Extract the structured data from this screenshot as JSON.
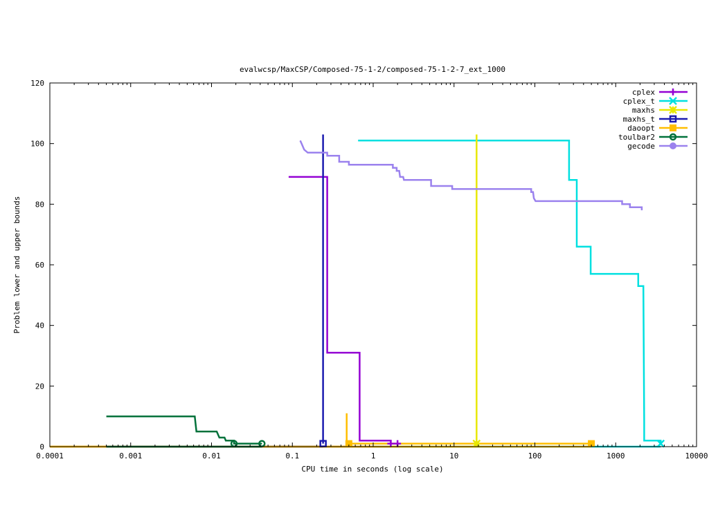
{
  "chart_data": {
    "type": "line",
    "title": "evalwcsp/MaxCSP/Composed-75-1-2/composed-75-1-2-7_ext_1000",
    "xlabel": "CPU time in seconds (log scale)",
    "ylabel": "Problem lower and upper bounds",
    "xscale": "log",
    "xlim": [
      0.0001,
      10000
    ],
    "ylim": [
      0,
      120
    ],
    "x_ticks": [
      0.0001,
      0.001,
      0.01,
      0.1,
      1,
      10,
      100,
      1000,
      10000
    ],
    "x_tick_labels": [
      "0.0001",
      "0.001",
      "0.01",
      "0.1",
      "1",
      "10",
      "100",
      "1000",
      "10000"
    ],
    "y_ticks": [
      0,
      20,
      40,
      60,
      80,
      100,
      120
    ],
    "y_tick_labels": [
      "0",
      "20",
      "40",
      "60",
      "80",
      "100",
      "120"
    ],
    "grid": false,
    "legend_position": "top-right",
    "series": [
      {
        "name": "cplex",
        "color": "#9400d3",
        "marker": "plus",
        "marker_points": [
          [
            1.65,
            1
          ],
          [
            2.0,
            1
          ]
        ],
        "lines": [
          [
            [
              0.09,
              89
            ],
            [
              0.27,
              89
            ],
            [
              0.27,
              31
            ],
            [
              0.68,
              31
            ],
            [
              0.68,
              2
            ],
            [
              1.65,
              2
            ],
            [
              1.65,
              1
            ]
          ],
          [
            [
              0.0001,
              0
            ],
            [
              1.65,
              0
            ]
          ]
        ]
      },
      {
        "name": "cplex_t",
        "color": "#00e0e0",
        "marker": "x",
        "marker_points": [
          [
            3600,
            1
          ]
        ],
        "lines": [
          [
            [
              0.65,
              101
            ],
            [
              265,
              101
            ],
            [
              265,
              88
            ],
            [
              330,
              88
            ],
            [
              330,
              66
            ],
            [
              490,
              66
            ],
            [
              490,
              57
            ],
            [
              1900,
              57
            ],
            [
              1900,
              53
            ],
            [
              2200,
              53
            ],
            [
              2250,
              8
            ],
            [
              2250,
              2
            ],
            [
              3600,
              2
            ],
            [
              3600,
              1
            ]
          ],
          [
            [
              1,
              0
            ],
            [
              3600,
              0
            ]
          ]
        ]
      },
      {
        "name": "maxhs",
        "color": "#e8e800",
        "marker": "star",
        "marker_points": [
          [
            19,
            1
          ]
        ],
        "lines": [
          [
            [
              19,
              103
            ],
            [
              19,
              1
            ]
          ],
          [
            [
              0.0001,
              0
            ],
            [
              19,
              0
            ]
          ]
        ]
      },
      {
        "name": "maxhs_t",
        "color": "#1a1aaf",
        "marker": "square-open",
        "marker_points": [
          [
            0.24,
            1
          ]
        ],
        "lines": [
          [
            [
              0.24,
              103
            ],
            [
              0.24,
              1
            ]
          ],
          [
            [
              0.0005,
              0
            ],
            [
              0.24,
              0
            ]
          ]
        ]
      },
      {
        "name": "daoopt",
        "color": "#ffbe00",
        "marker": "square-filled",
        "marker_points": [
          [
            0.5,
            1
          ],
          [
            500,
            1
          ]
        ],
        "lines": [
          [
            [
              0.47,
              11
            ],
            [
              0.47,
              1
            ],
            [
              500,
              1
            ]
          ],
          [
            [
              0.0001,
              0
            ],
            [
              500,
              0
            ]
          ]
        ]
      },
      {
        "name": "toulbar2",
        "color": "#00713a",
        "marker": "circle-open",
        "marker_points": [
          [
            0.019,
            1
          ],
          [
            0.042,
            1
          ]
        ],
        "lines": [
          [
            [
              0.0005,
              10
            ],
            [
              0.0062,
              10
            ],
            [
              0.0065,
              5
            ],
            [
              0.0116,
              5
            ],
            [
              0.0125,
              3
            ],
            [
              0.0145,
              3
            ],
            [
              0.015,
              2
            ],
            [
              0.019,
              2
            ],
            [
              0.019,
              1
            ],
            [
              0.042,
              1
            ]
          ],
          [
            [
              0.0005,
              0
            ],
            [
              0.042,
              0
            ]
          ]
        ]
      },
      {
        "name": "gecode",
        "color": "#9b82ee",
        "marker": "circle-filled",
        "marker_points": [],
        "lines": [
          [
            [
              0.125,
              101
            ],
            [
              0.13,
              100
            ],
            [
              0.14,
              98
            ],
            [
              0.155,
              97
            ],
            [
              0.27,
              97
            ],
            [
              0.27,
              96
            ],
            [
              0.38,
              96
            ],
            [
              0.38,
              94
            ],
            [
              0.5,
              94
            ],
            [
              0.5,
              93
            ],
            [
              1.75,
              93
            ],
            [
              1.75,
              92
            ],
            [
              1.95,
              92
            ],
            [
              1.95,
              91
            ],
            [
              2.1,
              91
            ],
            [
              2.15,
              89
            ],
            [
              2.35,
              89
            ],
            [
              2.4,
              88
            ],
            [
              5.2,
              88
            ],
            [
              5.2,
              86
            ],
            [
              9.5,
              86
            ],
            [
              9.5,
              85
            ],
            [
              90,
              85
            ],
            [
              90,
              84
            ],
            [
              95,
              84
            ],
            [
              97,
              82
            ],
            [
              102,
              81
            ],
            [
              1200,
              81
            ],
            [
              1200,
              80
            ],
            [
              1500,
              80
            ],
            [
              1500,
              79
            ],
            [
              2100,
              79
            ],
            [
              2100,
              78
            ]
          ]
        ]
      }
    ]
  }
}
